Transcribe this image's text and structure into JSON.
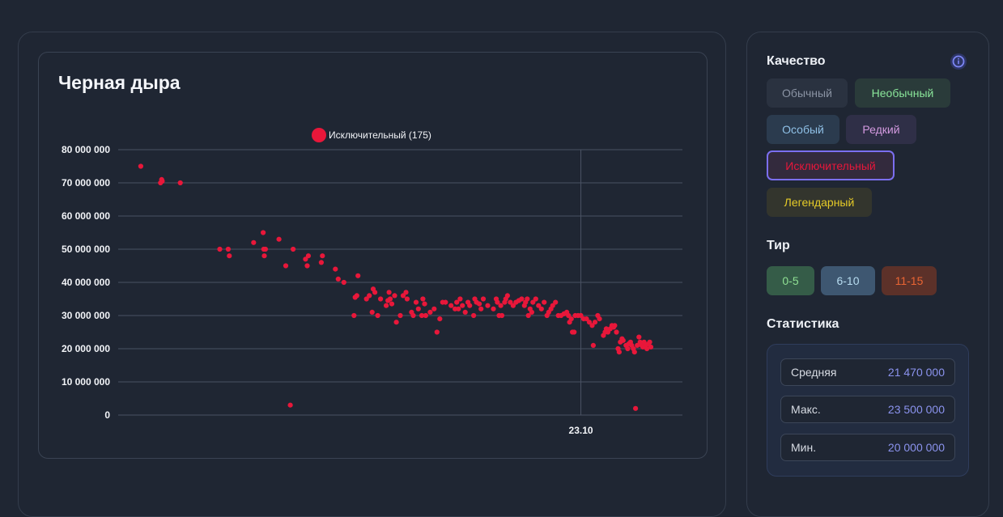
{
  "chart_data": {
    "type": "scatter",
    "title": "Черная дыра",
    "series": [
      {
        "name": "Исключительный (175)",
        "color": "#e8173a",
        "points": [
          [
            0.04,
            75000000
          ],
          [
            0.075,
            70000000
          ],
          [
            0.077,
            71000000
          ],
          [
            0.078,
            70500000
          ],
          [
            0.11,
            70000000
          ],
          [
            0.18,
            50000000
          ],
          [
            0.195,
            50000000
          ],
          [
            0.197,
            48000000
          ],
          [
            0.24,
            52000000
          ],
          [
            0.257,
            55000000
          ],
          [
            0.258,
            50000000
          ],
          [
            0.259,
            48000000
          ],
          [
            0.261,
            50000000
          ],
          [
            0.285,
            53000000
          ],
          [
            0.297,
            45000000
          ],
          [
            0.305,
            3000000
          ],
          [
            0.31,
            50000000
          ],
          [
            0.332,
            47000000
          ],
          [
            0.335,
            45000000
          ],
          [
            0.337,
            48000000
          ],
          [
            0.36,
            46000000
          ],
          [
            0.362,
            48000000
          ],
          [
            0.385,
            44000000
          ],
          [
            0.39,
            41000000
          ],
          [
            0.4,
            40000000
          ],
          [
            0.418,
            30000000
          ],
          [
            0.42,
            35500000
          ],
          [
            0.423,
            36000000
          ],
          [
            0.425,
            42000000
          ],
          [
            0.44,
            35000000
          ],
          [
            0.445,
            36000000
          ],
          [
            0.45,
            31000000
          ],
          [
            0.452,
            38000000
          ],
          [
            0.455,
            37000000
          ],
          [
            0.46,
            30000000
          ],
          [
            0.465,
            35000000
          ],
          [
            0.475,
            33000000
          ],
          [
            0.478,
            34500000
          ],
          [
            0.48,
            37000000
          ],
          [
            0.482,
            35000000
          ],
          [
            0.485,
            33500000
          ],
          [
            0.49,
            36000000
          ],
          [
            0.493,
            28000000
          ],
          [
            0.5,
            30000000
          ],
          [
            0.505,
            36000000
          ],
          [
            0.51,
            37000000
          ],
          [
            0.512,
            35000000
          ],
          [
            0.52,
            31000000
          ],
          [
            0.523,
            30000000
          ],
          [
            0.528,
            34000000
          ],
          [
            0.532,
            32000000
          ],
          [
            0.538,
            30000000
          ],
          [
            0.54,
            35000000
          ],
          [
            0.543,
            33500000
          ],
          [
            0.545,
            30000000
          ],
          [
            0.553,
            31000000
          ],
          [
            0.56,
            32000000
          ],
          [
            0.565,
            25000000
          ],
          [
            0.57,
            29000000
          ],
          [
            0.575,
            34000000
          ],
          [
            0.58,
            34000000
          ],
          [
            0.59,
            33000000
          ],
          [
            0.597,
            32000000
          ],
          [
            0.6,
            34000000
          ],
          [
            0.603,
            32000000
          ],
          [
            0.606,
            35000000
          ],
          [
            0.61,
            33000000
          ],
          [
            0.615,
            31000000
          ],
          [
            0.62,
            34000000
          ],
          [
            0.623,
            33000000
          ],
          [
            0.63,
            30000000
          ],
          [
            0.632,
            35000000
          ],
          [
            0.635,
            34000000
          ],
          [
            0.64,
            33500000
          ],
          [
            0.643,
            32000000
          ],
          [
            0.647,
            35000000
          ],
          [
            0.655,
            33000000
          ],
          [
            0.665,
            32000000
          ],
          [
            0.67,
            35000000
          ],
          [
            0.672,
            34000000
          ],
          [
            0.675,
            30000000
          ],
          [
            0.678,
            33000000
          ],
          [
            0.68,
            30000000
          ],
          [
            0.685,
            34000000
          ],
          [
            0.687,
            35000000
          ],
          [
            0.69,
            36000000
          ],
          [
            0.695,
            34000000
          ],
          [
            0.7,
            33000000
          ],
          [
            0.705,
            34000000
          ],
          [
            0.71,
            34500000
          ],
          [
            0.715,
            35000000
          ],
          [
            0.72,
            33000000
          ],
          [
            0.722,
            34000000
          ],
          [
            0.725,
            35000000
          ],
          [
            0.727,
            30000000
          ],
          [
            0.73,
            32000000
          ],
          [
            0.733,
            31000000
          ],
          [
            0.735,
            34000000
          ],
          [
            0.74,
            35000000
          ],
          [
            0.745,
            33000000
          ],
          [
            0.75,
            32000000
          ],
          [
            0.755,
            34000000
          ],
          [
            0.76,
            30000000
          ],
          [
            0.763,
            31000000
          ],
          [
            0.767,
            32000000
          ],
          [
            0.77,
            33000000
          ],
          [
            0.775,
            34000000
          ],
          [
            0.78,
            30000000
          ],
          [
            0.785,
            30000000
          ],
          [
            0.79,
            30500000
          ],
          [
            0.795,
            31000000
          ],
          [
            0.798,
            30000000
          ],
          [
            0.8,
            28000000
          ],
          [
            0.803,
            29000000
          ],
          [
            0.805,
            25000000
          ],
          [
            0.808,
            25000000
          ],
          [
            0.81,
            30000000
          ],
          [
            0.815,
            30000000
          ],
          [
            0.82,
            30000000
          ],
          [
            0.825,
            29000000
          ],
          [
            0.83,
            29000000
          ],
          [
            0.835,
            28000000
          ],
          [
            0.84,
            27000000
          ],
          [
            0.842,
            21000000
          ],
          [
            0.845,
            28000000
          ],
          [
            0.85,
            30000000
          ],
          [
            0.853,
            29000000
          ],
          [
            0.86,
            24000000
          ],
          [
            0.863,
            25000000
          ],
          [
            0.865,
            26000000
          ],
          [
            0.868,
            25000000
          ],
          [
            0.872,
            26000000
          ],
          [
            0.875,
            27000000
          ],
          [
            0.878,
            26500000
          ],
          [
            0.88,
            27000000
          ],
          [
            0.883,
            25000000
          ],
          [
            0.886,
            20000000
          ],
          [
            0.888,
            19000000
          ],
          [
            0.89,
            22000000
          ],
          [
            0.893,
            23000000
          ],
          [
            0.895,
            22500000
          ],
          [
            0.9,
            21000000
          ],
          [
            0.903,
            20000000
          ],
          [
            0.905,
            21500000
          ],
          [
            0.908,
            22000000
          ],
          [
            0.91,
            21000000
          ],
          [
            0.913,
            20000000
          ],
          [
            0.915,
            19000000
          ],
          [
            0.917,
            2000000
          ],
          [
            0.92,
            21000000
          ],
          [
            0.923,
            23500000
          ],
          [
            0.925,
            22000000
          ],
          [
            0.928,
            21000000
          ],
          [
            0.93,
            20500000
          ],
          [
            0.932,
            22000000
          ],
          [
            0.935,
            21000000
          ],
          [
            0.937,
            20000000
          ],
          [
            0.94,
            21500000
          ],
          [
            0.942,
            22000000
          ],
          [
            0.944,
            20500000
          ]
        ]
      }
    ],
    "ylim": [
      0,
      80000000
    ],
    "yticks": [
      "80 000 000",
      "70 000 000",
      "60 000 000",
      "50 000 000",
      "40 000 000",
      "30 000 000",
      "20 000 000",
      "10 000 000",
      "0"
    ],
    "xtick_label": "23.10",
    "xtick_pos": 0.82,
    "grid": true,
    "legend_position": "top"
  },
  "sidebar": {
    "quality_title": "Качество",
    "quality_chips": [
      {
        "label": "Обычный",
        "color": "#8a93a3",
        "bg": "#2a3240"
      },
      {
        "label": "Необычный",
        "color": "#8ae69a",
        "bg": "#2a3b3a"
      },
      {
        "label": "Особый",
        "color": "#8fc0e6",
        "bg": "#2b3b4e"
      },
      {
        "label": "Редкий",
        "color": "#d49ae0",
        "bg": "#2f2f47"
      },
      {
        "label": "Исключительный",
        "color": "#e8173a",
        "bg": "#332a3d",
        "border": "#7b6ff0"
      },
      {
        "label": "Легендарный",
        "color": "#e6cb28",
        "bg": "#33352d"
      }
    ],
    "tier_title": "Тир",
    "tier_chips": [
      {
        "label": "0-5",
        "color": "#8fe093",
        "bg": "#355c48"
      },
      {
        "label": "6-10",
        "color": "#b7dcf0",
        "bg": "#3e5771"
      },
      {
        "label": "11-15",
        "color": "#ea6533",
        "bg": "#5c3129"
      }
    ],
    "stats_title": "Статистика",
    "stats": [
      {
        "label": "Средняя",
        "value": "21 470 000"
      },
      {
        "label": "Макс.",
        "value": "23 500 000"
      },
      {
        "label": "Мин.",
        "value": "20 000 000"
      }
    ]
  }
}
